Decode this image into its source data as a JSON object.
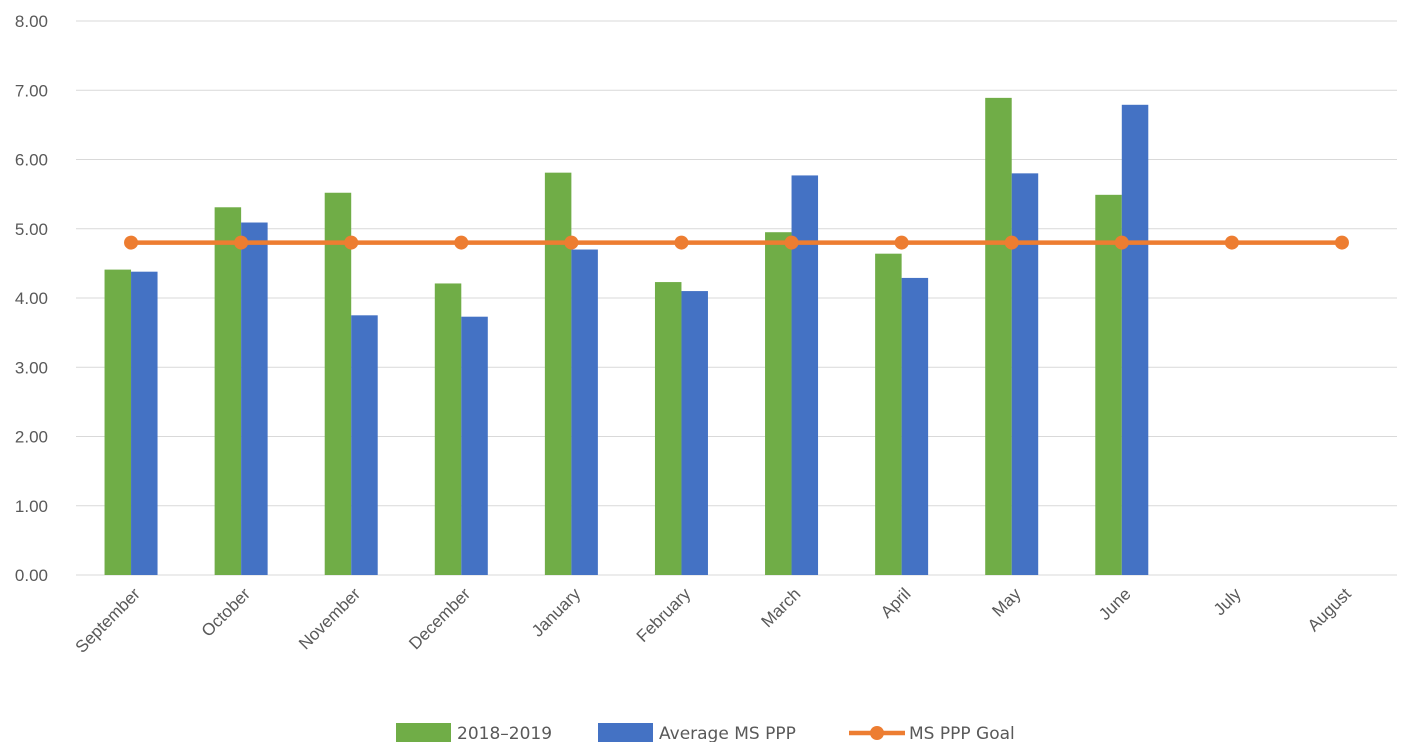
{
  "chart_data": {
    "type": "bar",
    "title": "",
    "xlabel": "",
    "ylabel": "",
    "ylim": [
      0,
      8
    ],
    "yticks": [
      "0.00",
      "1.00",
      "2.00",
      "3.00",
      "4.00",
      "5.00",
      "6.00",
      "7.00",
      "8.00"
    ],
    "grid": true,
    "legend_position": "bottom",
    "categories": [
      "September",
      "October",
      "November",
      "December",
      "January",
      "February",
      "March",
      "April",
      "May",
      "June",
      "July",
      "August"
    ],
    "series": [
      {
        "name": "2018–2019",
        "kind": "bar",
        "color": "#70AD47",
        "values": [
          4.41,
          5.31,
          5.52,
          4.21,
          5.81,
          4.23,
          4.95,
          4.64,
          6.89,
          5.49,
          null,
          null
        ]
      },
      {
        "name": "Average MS PPP",
        "kind": "bar",
        "color": "#4472C4",
        "values": [
          4.38,
          5.09,
          3.75,
          3.73,
          4.7,
          4.1,
          5.77,
          4.29,
          5.8,
          6.79,
          null,
          null
        ]
      },
      {
        "name": "MS PPP Goal",
        "kind": "line",
        "color": "#ED7D31",
        "values": [
          4.8,
          4.8,
          4.8,
          4.8,
          4.8,
          4.8,
          4.8,
          4.8,
          4.8,
          4.8,
          4.8,
          4.8
        ]
      }
    ]
  }
}
